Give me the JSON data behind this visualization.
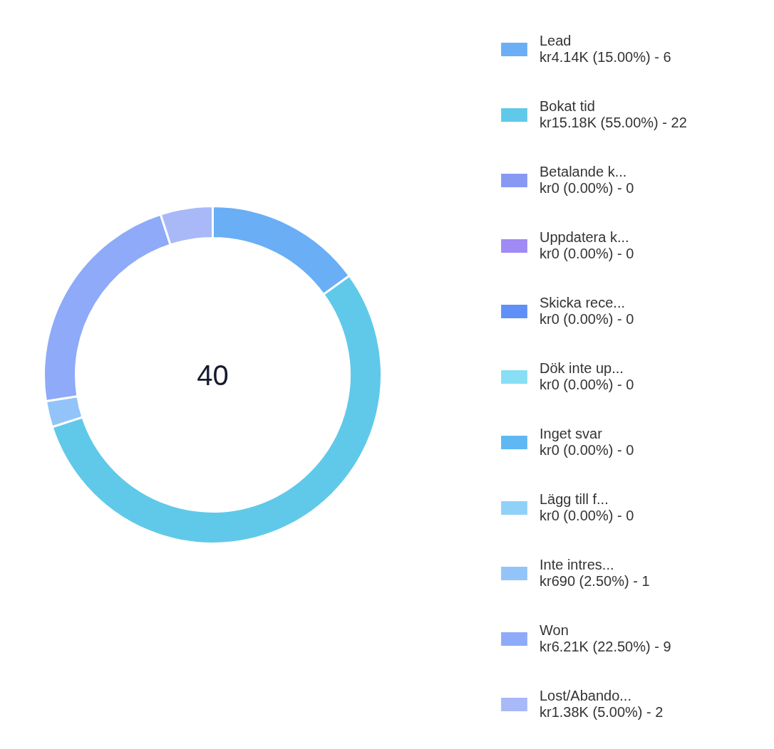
{
  "chart_data": {
    "type": "donut",
    "categories": [
      "Lead",
      "Bokat tid",
      "Betalande k...",
      "Uppdatera k...",
      "Skicka rece...",
      "Dök inte up...",
      "Inget svar",
      "Lägg till f...",
      "Inte intres...",
      "Won",
      "Lost/Abando..."
    ],
    "values": [
      4140,
      15180,
      0,
      0,
      0,
      0,
      0,
      0,
      690,
      6210,
      1380
    ],
    "colors": [
      "#6aaef5",
      "#60c9e9",
      "#8799f3",
      "#a08af3",
      "#608ff7",
      "#87def5",
      "#5fb8f3",
      "#8fd1f8",
      "#93c4f9",
      "#8eaaf8",
      "#a9b9f8"
    ],
    "value_labels": [
      "kr4.14K (15.00%) - 6",
      "kr15.18K (55.00%) - 22",
      "kr0 (0.00%) - 0",
      "kr0 (0.00%) - 0",
      "kr0 (0.00%) - 0",
      "kr0 (0.00%) - 0",
      "kr0 (0.00%) - 0",
      "kr0 (0.00%) - 0",
      "kr690 (2.50%) - 1",
      "kr6.21K (22.50%) - 9",
      "kr1.38K (5.00%) - 2"
    ],
    "annotations": [
      "40"
    ],
    "legend": "right"
  }
}
